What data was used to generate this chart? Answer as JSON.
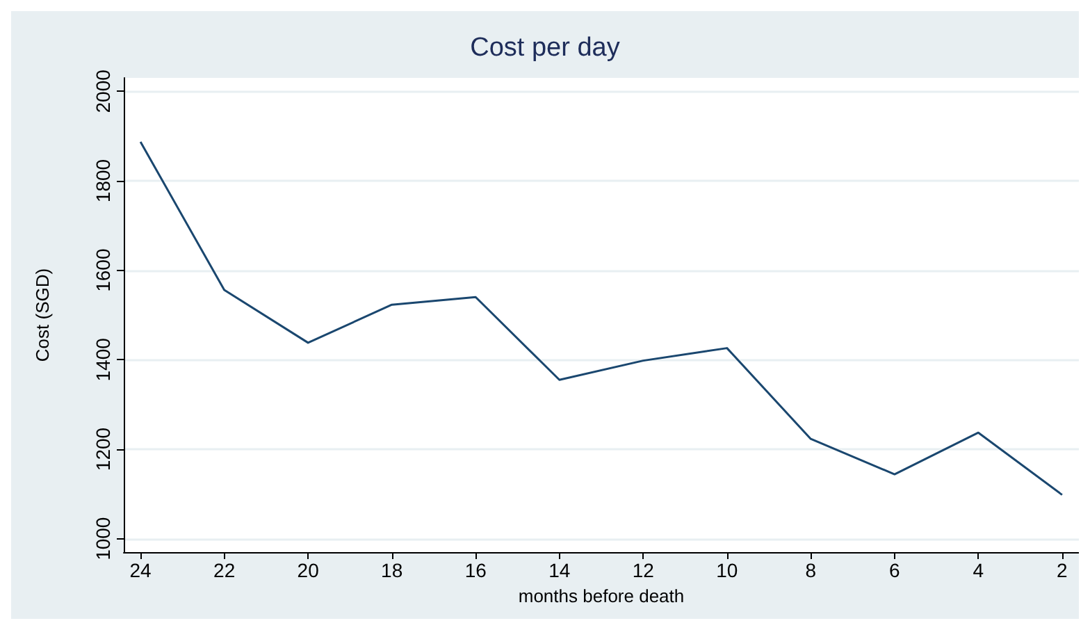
{
  "chart_data": {
    "type": "line",
    "title": "Cost per day",
    "xlabel": "months before death",
    "ylabel": "Cost (SGD)",
    "x": [
      24,
      22,
      20,
      18,
      16,
      14,
      12,
      10,
      8,
      6,
      4,
      2
    ],
    "series": [
      {
        "color": "#1a476f",
        "values": [
          1887,
          1556,
          1438,
          1523,
          1540,
          1355,
          1398,
          1426,
          1223,
          1144,
          1237,
          1098
        ]
      }
    ],
    "xlim": [
      24.4,
      1.6
    ],
    "xticks": [
      24,
      22,
      20,
      18,
      16,
      14,
      12,
      10,
      8,
      6,
      4,
      2
    ],
    "ylim": [
      970,
      2030
    ],
    "yticks": [
      1000,
      1200,
      1400,
      1600,
      1800,
      2000
    ],
    "grid": "y",
    "marker": "none",
    "line_style": "solid"
  }
}
